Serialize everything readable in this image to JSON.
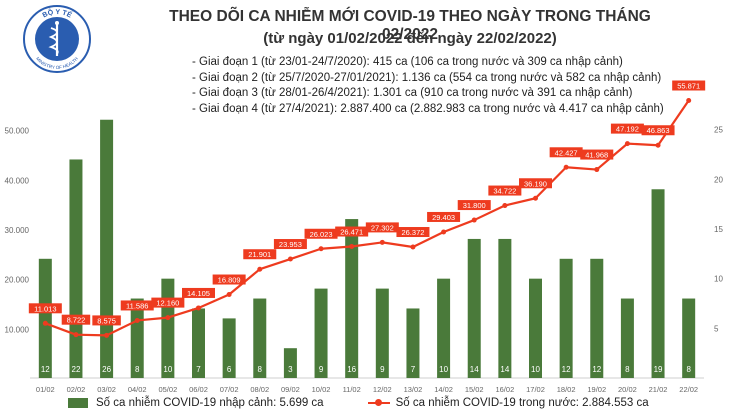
{
  "logo": {
    "top_text": "BỘ Y TẾ",
    "bottom_text": "MINISTRY OF HEALTH",
    "icon": "caduceus-icon"
  },
  "header": {
    "title": "THEO DÕI CA NHIỄM MỚI COVID-19 THEO NGÀY TRONG THÁNG 02/2022",
    "subtitle": "(từ ngày 01/02/2022 đến ngày 22/02/2022)",
    "phases": [
      "- Giai đoạn 1 (từ 23/01-24/7/2020): 415 ca (106 ca trong nước và 309 ca nhập cảnh)",
      "- Giai đoạn 2 (từ 25/7/2020-27/01/2021): 1.136 ca (554 ca trong nước và 582 ca nhập cảnh)",
      "- Giai đoạn 3 (từ 28/01-26/4/2021): 1.301 ca (910 ca trong nước và 391 ca nhập cảnh)",
      "- Giai đoạn 4 (từ 27/4/2021): 2.887.400 ca (2.882.983 ca trong nước và 4.417 ca nhập cảnh)"
    ]
  },
  "chart_data": {
    "type": "bar",
    "categories": [
      "01/02",
      "02/02",
      "03/02",
      "04/02",
      "05/02",
      "06/02",
      "07/02",
      "08/02",
      "09/02",
      "10/02",
      "11/02",
      "12/02",
      "13/02",
      "14/02",
      "15/02",
      "16/02",
      "17/02",
      "18/02",
      "19/02",
      "20/02",
      "21/02",
      "22/02"
    ],
    "series": [
      {
        "name": "Số ca nhiễm COVID-19 nhập cảnh: 5.699 ca",
        "axis": "right",
        "type": "bar",
        "values": [
          12,
          22,
          26,
          8,
          10,
          7,
          6,
          8,
          3,
          9,
          16,
          9,
          7,
          10,
          14,
          14,
          10,
          12,
          12,
          8,
          19,
          8
        ],
        "labels": [
          "12",
          "22",
          "26",
          "8",
          "10",
          "7",
          "6",
          "8",
          "3",
          "9",
          "16",
          "9",
          "7",
          "10",
          "14",
          "14",
          "10",
          "12",
          "12",
          "8",
          "19",
          "8"
        ]
      },
      {
        "name": "Số ca nhiễm COVID-19 trong nước: 2.884.553 ca",
        "axis": "left",
        "type": "line",
        "values": [
          11013,
          8722,
          8575,
          11586,
          12160,
          14105,
          16809,
          21901,
          23953,
          26023,
          26471,
          27302,
          26372,
          29403,
          31800,
          34722,
          36190,
          42427,
          41968,
          47192,
          46863,
          55871
        ],
        "labels": [
          "11.013",
          "8.722",
          "8.575",
          "11.586",
          "12.160",
          "14.105",
          "16.809",
          "21.901",
          "23.953",
          "26.023",
          "26.471",
          "27.302",
          "26.372",
          "29.403",
          "31.800",
          "34.722",
          "36.190",
          "42.427",
          "41.968",
          "47.192",
          "46.863",
          "55.871"
        ]
      }
    ],
    "y_left": {
      "ylim": [
        0,
        60000
      ],
      "ticks": [
        10000,
        20000,
        30000,
        40000,
        50000
      ],
      "tick_labels": [
        "10.000",
        "20.000",
        "30.000",
        "40.000",
        "50.000"
      ]
    },
    "y_right": {
      "ylim": [
        0,
        30
      ],
      "ticks": [
        5,
        10,
        15,
        20,
        25
      ],
      "tick_labels": [
        "5",
        "10",
        "15",
        "20",
        "25"
      ]
    },
    "grid": false,
    "legend_position": "bottom",
    "colors": {
      "bar": "#4a7a3a",
      "line": "#ee3b1f",
      "label_box": "#ee3b1f",
      "axis_text": "#666666"
    }
  }
}
